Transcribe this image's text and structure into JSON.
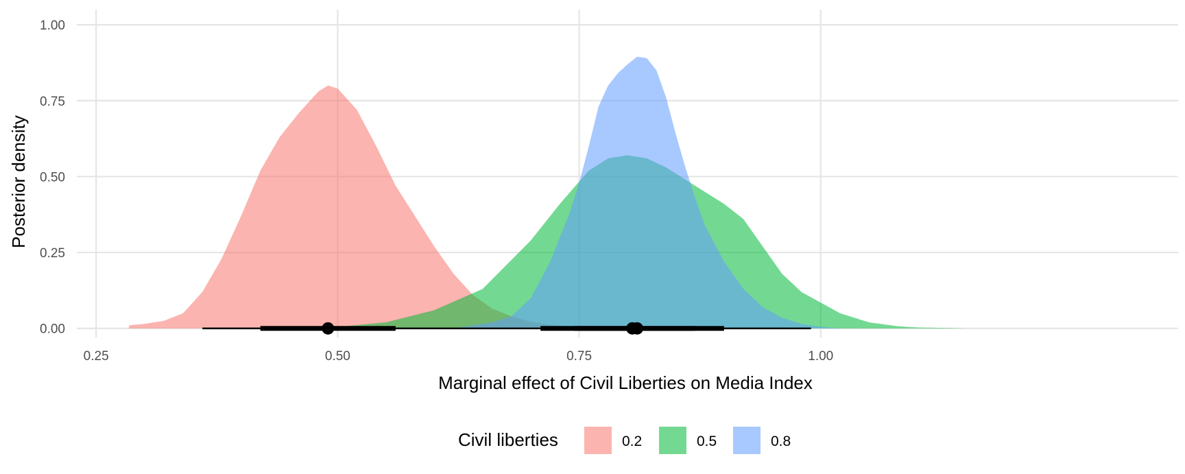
{
  "chart_data": {
    "type": "area",
    "title": "",
    "xlabel": "Marginal effect of Civil Liberties on Media Index",
    "ylabel": "Posterior density",
    "xlim": [
      0.23,
      1.37
    ],
    "ylim": [
      -0.03,
      1.05
    ],
    "x_ticks": [
      0.25,
      0.5,
      0.75,
      1.0
    ],
    "x_tick_labels": [
      "0.25",
      "0.50",
      "0.75",
      "1.00"
    ],
    "y_ticks": [
      0,
      0.25,
      0.5,
      0.75,
      1.0
    ],
    "y_tick_labels": [
      "0.00",
      "0.25",
      "0.50",
      "0.75",
      "1.00"
    ],
    "grid": true,
    "legend": {
      "title": "Civil liberties",
      "position": "bottom",
      "entries": [
        "0.2",
        "0.5",
        "0.8"
      ]
    },
    "series": [
      {
        "name": "0.2",
        "color": "#F8766D",
        "density": [
          [
            0.284,
            0.01
          ],
          [
            0.3,
            0.015
          ],
          [
            0.32,
            0.025
          ],
          [
            0.34,
            0.05
          ],
          [
            0.36,
            0.12
          ],
          [
            0.38,
            0.23
          ],
          [
            0.4,
            0.37
          ],
          [
            0.42,
            0.52
          ],
          [
            0.44,
            0.63
          ],
          [
            0.46,
            0.71
          ],
          [
            0.48,
            0.78
          ],
          [
            0.49,
            0.8
          ],
          [
            0.5,
            0.79
          ],
          [
            0.52,
            0.72
          ],
          [
            0.54,
            0.6
          ],
          [
            0.56,
            0.47
          ],
          [
            0.58,
            0.37
          ],
          [
            0.6,
            0.27
          ],
          [
            0.62,
            0.18
          ],
          [
            0.64,
            0.11
          ],
          [
            0.66,
            0.065
          ],
          [
            0.68,
            0.04
          ],
          [
            0.7,
            0.022
          ],
          [
            0.72,
            0.012
          ],
          [
            0.74,
            0.006
          ],
          [
            0.76,
            0.003
          ],
          [
            0.78,
            0.001
          ]
        ],
        "interval": {
          "median": 0.49,
          "inner": [
            0.42,
            0.56
          ],
          "outer": [
            0.36,
            0.64
          ]
        }
      },
      {
        "name": "0.5",
        "color": "#00BA38",
        "density": [
          [
            0.45,
            0.0
          ],
          [
            0.5,
            0.005
          ],
          [
            0.55,
            0.02
          ],
          [
            0.6,
            0.06
          ],
          [
            0.65,
            0.13
          ],
          [
            0.7,
            0.29
          ],
          [
            0.73,
            0.41
          ],
          [
            0.76,
            0.52
          ],
          [
            0.78,
            0.56
          ],
          [
            0.8,
            0.57
          ],
          [
            0.82,
            0.56
          ],
          [
            0.84,
            0.53
          ],
          [
            0.86,
            0.49
          ],
          [
            0.88,
            0.45
          ],
          [
            0.9,
            0.41
          ],
          [
            0.92,
            0.36
          ],
          [
            0.94,
            0.27
          ],
          [
            0.96,
            0.18
          ],
          [
            0.98,
            0.12
          ],
          [
            1.0,
            0.085
          ],
          [
            1.02,
            0.05
          ],
          [
            1.05,
            0.02
          ],
          [
            1.08,
            0.007
          ],
          [
            1.1,
            0.003
          ],
          [
            1.15,
            0.0
          ]
        ],
        "interval": {
          "median": 0.805,
          "inner": [
            0.71,
            0.9
          ],
          "outer": [
            0.63,
            0.99
          ]
        }
      },
      {
        "name": "0.8",
        "color": "#619CFF",
        "density": [
          [
            0.62,
            0.0
          ],
          [
            0.66,
            0.02
          ],
          [
            0.68,
            0.04
          ],
          [
            0.7,
            0.1
          ],
          [
            0.72,
            0.22
          ],
          [
            0.74,
            0.38
          ],
          [
            0.75,
            0.48
          ],
          [
            0.76,
            0.6
          ],
          [
            0.77,
            0.73
          ],
          [
            0.78,
            0.8
          ],
          [
            0.79,
            0.84
          ],
          [
            0.8,
            0.87
          ],
          [
            0.81,
            0.895
          ],
          [
            0.82,
            0.89
          ],
          [
            0.83,
            0.85
          ],
          [
            0.84,
            0.76
          ],
          [
            0.85,
            0.64
          ],
          [
            0.86,
            0.53
          ],
          [
            0.87,
            0.43
          ],
          [
            0.88,
            0.34
          ],
          [
            0.9,
            0.22
          ],
          [
            0.92,
            0.13
          ],
          [
            0.94,
            0.07
          ],
          [
            0.96,
            0.035
          ],
          [
            0.98,
            0.015
          ],
          [
            1.0,
            0.005
          ],
          [
            1.02,
            0.0
          ]
        ],
        "interval": {
          "median": 0.81,
          "inner": [
            0.745,
            0.87
          ],
          "outer": [
            0.7,
            0.92
          ]
        }
      }
    ]
  }
}
